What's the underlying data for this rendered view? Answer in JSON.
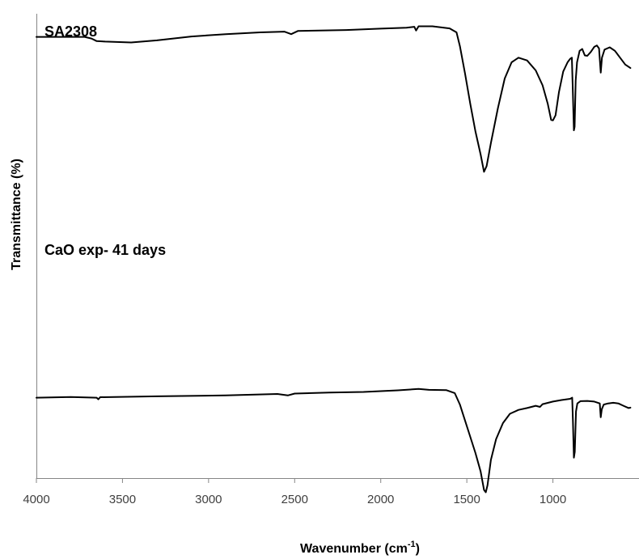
{
  "chart_data": {
    "type": "line",
    "title": "",
    "xlabel": "Wavenumber (cm",
    "xlabel_sup": "-1",
    "xlabel_close": ")",
    "ylabel": "Transmittance (%)",
    "xlim": [
      4000,
      500
    ],
    "x_reversed": true,
    "y_tick_labels": false,
    "grid": false,
    "x_ticks": [
      4000,
      3500,
      3000,
      2500,
      2000,
      1500,
      1000
    ],
    "series": [
      {
        "name": "SA2308",
        "color": "#000000",
        "points": [
          [
            4000,
            91
          ],
          [
            3720,
            91
          ],
          [
            3680,
            90.3
          ],
          [
            3650,
            89.2
          ],
          [
            3600,
            89
          ],
          [
            3450,
            88.6
          ],
          [
            3300,
            89.5
          ],
          [
            3100,
            91.2
          ],
          [
            2900,
            92.2
          ],
          [
            2700,
            93
          ],
          [
            2560,
            93.3
          ],
          [
            2520,
            92.2
          ],
          [
            2480,
            93.6
          ],
          [
            2200,
            94
          ],
          [
            2000,
            94.6
          ],
          [
            1850,
            95
          ],
          [
            1805,
            95.4
          ],
          [
            1795,
            93.8
          ],
          [
            1780,
            95.6
          ],
          [
            1700,
            95.6
          ],
          [
            1600,
            94.7
          ],
          [
            1560,
            93
          ],
          [
            1540,
            87
          ],
          [
            1510,
            75
          ],
          [
            1480,
            62
          ],
          [
            1450,
            50
          ],
          [
            1420,
            40
          ],
          [
            1400,
            32.5
          ],
          [
            1385,
            35
          ],
          [
            1360,
            45
          ],
          [
            1320,
            60
          ],
          [
            1280,
            73
          ],
          [
            1240,
            80
          ],
          [
            1200,
            82
          ],
          [
            1150,
            80.8
          ],
          [
            1100,
            76.5
          ],
          [
            1060,
            70
          ],
          [
            1030,
            62
          ],
          [
            1010,
            55
          ],
          [
            1000,
            54.8
          ],
          [
            985,
            57
          ],
          [
            965,
            67
          ],
          [
            940,
            76
          ],
          [
            915,
            80
          ],
          [
            900,
            81.5
          ],
          [
            890,
            82
          ],
          [
            885,
            70
          ],
          [
            878,
            50.5
          ],
          [
            874,
            52
          ],
          [
            868,
            72
          ],
          [
            860,
            80
          ],
          [
            845,
            85
          ],
          [
            830,
            85.8
          ],
          [
            815,
            83
          ],
          [
            800,
            82.8
          ],
          [
            780,
            84.5
          ],
          [
            760,
            86.7
          ],
          [
            745,
            87.3
          ],
          [
            732,
            86
          ],
          [
            722,
            75.5
          ],
          [
            715,
            82
          ],
          [
            700,
            85.5
          ],
          [
            670,
            86.5
          ],
          [
            640,
            85
          ],
          [
            610,
            82
          ],
          [
            580,
            79
          ],
          [
            550,
            77.5
          ]
        ]
      },
      {
        "name": "CaO exp- 41 days",
        "color": "#000000",
        "points": [
          [
            4000,
            24
          ],
          [
            3800,
            24.3
          ],
          [
            3650,
            24
          ],
          [
            3640,
            23.3
          ],
          [
            3630,
            24.2
          ],
          [
            3300,
            24.6
          ],
          [
            2900,
            25
          ],
          [
            2600,
            25.6
          ],
          [
            2540,
            25
          ],
          [
            2500,
            25.8
          ],
          [
            2300,
            26.2
          ],
          [
            2100,
            26.5
          ],
          [
            1900,
            27.2
          ],
          [
            1780,
            27.8
          ],
          [
            1720,
            27.4
          ],
          [
            1620,
            27.3
          ],
          [
            1570,
            26
          ],
          [
            1540,
            21
          ],
          [
            1510,
            14
          ],
          [
            1480,
            7
          ],
          [
            1450,
            0
          ],
          [
            1420,
            -8
          ],
          [
            1400,
            -16
          ],
          [
            1390,
            -17
          ],
          [
            1380,
            -14
          ],
          [
            1360,
            -3
          ],
          [
            1330,
            6
          ],
          [
            1290,
            13
          ],
          [
            1250,
            17
          ],
          [
            1200,
            18.7
          ],
          [
            1150,
            19.5
          ],
          [
            1100,
            20.5
          ],
          [
            1075,
            20
          ],
          [
            1060,
            21.2
          ],
          [
            1000,
            22.3
          ],
          [
            950,
            23
          ],
          [
            900,
            23.5
          ],
          [
            888,
            24
          ],
          [
            884,
            14
          ],
          [
            878,
            -2
          ],
          [
            873,
            0.5
          ],
          [
            866,
            18
          ],
          [
            858,
            21.5
          ],
          [
            840,
            22.5
          ],
          [
            800,
            22.6
          ],
          [
            760,
            22.3
          ],
          [
            728,
            21.5
          ],
          [
            722,
            15.5
          ],
          [
            716,
            19
          ],
          [
            705,
            21
          ],
          [
            680,
            21.5
          ],
          [
            650,
            21.8
          ],
          [
            620,
            21.5
          ],
          [
            590,
            20.5
          ],
          [
            560,
            19.5
          ],
          [
            550,
            19.7
          ]
        ]
      }
    ]
  }
}
